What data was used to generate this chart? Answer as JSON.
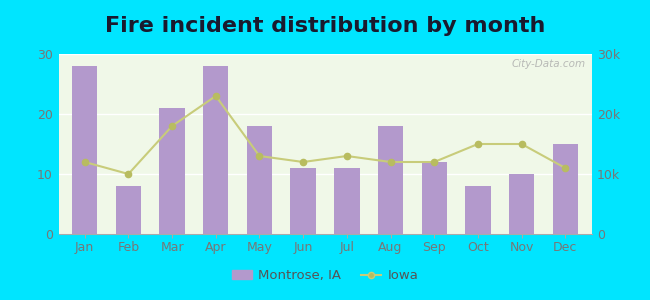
{
  "title": "Fire incident distribution by month",
  "months": [
    "Jan",
    "Feb",
    "Mar",
    "Apr",
    "May",
    "Jun",
    "Jul",
    "Aug",
    "Sep",
    "Oct",
    "Nov",
    "Dec"
  ],
  "bar_values": [
    28,
    8,
    21,
    28,
    18,
    11,
    11,
    18,
    12,
    8,
    10,
    15
  ],
  "line_values": [
    12000,
    10000,
    18000,
    23000,
    13000,
    12000,
    13000,
    12000,
    12000,
    15000,
    15000,
    11000
  ],
  "bar_color": "#b399cc",
  "line_color": "#c8cc7a",
  "line_marker_color": "#b8bc60",
  "bar_ylim": [
    0,
    30
  ],
  "line_ylim": [
    0,
    30000
  ],
  "background_outer": "#00e5ff",
  "background_inner_top": "#f0f8e8",
  "background_inner_bottom": "#e0f0d0",
  "title_fontsize": 16,
  "axis_fontsize": 9,
  "tick_color": "#777777",
  "legend_label_bar": "Montrose, IA",
  "legend_label_line": "Iowa",
  "watermark": "City-Data.com"
}
